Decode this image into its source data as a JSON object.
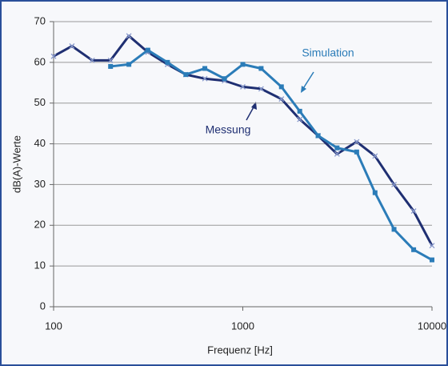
{
  "chart_data": {
    "type": "line",
    "xlabel": "Frequenz [Hz]",
    "ylabel": "dB(A)-Werte",
    "xscale": "log",
    "xlim": [
      100,
      10000
    ],
    "xticks": [
      100,
      1000,
      10000
    ],
    "ylim": [
      0,
      70
    ],
    "yticks": [
      0,
      10,
      20,
      30,
      40,
      50,
      60,
      70
    ],
    "grid": true,
    "annotations": [
      "Simulation",
      "Messung"
    ],
    "series": [
      {
        "name": "Messung",
        "color": "#1f2f72",
        "marker": "x",
        "x": [
          100,
          125,
          160,
          200,
          250,
          315,
          400,
          500,
          630,
          800,
          1000,
          1250,
          1600,
          2000,
          2500,
          3150,
          4000,
          5000,
          6300,
          8000,
          10000
        ],
        "values": [
          61.5,
          64,
          60.5,
          60.5,
          66.5,
          62.5,
          59.5,
          57,
          56,
          55.5,
          54,
          53.5,
          51,
          46,
          42,
          37.5,
          40.5,
          37,
          30,
          23.5,
          15
        ]
      },
      {
        "name": "Simulation",
        "color": "#2b7cb8",
        "marker": "square",
        "x": [
          200,
          250,
          315,
          400,
          500,
          630,
          800,
          1000,
          1250,
          1600,
          2000,
          2500,
          3150,
          4000,
          5000,
          6300,
          8000,
          10000
        ],
        "values": [
          59,
          59.5,
          63,
          60,
          57,
          58.5,
          56,
          59.5,
          58.5,
          54,
          48,
          42,
          39,
          38,
          28,
          19,
          14,
          11.5
        ]
      }
    ]
  }
}
